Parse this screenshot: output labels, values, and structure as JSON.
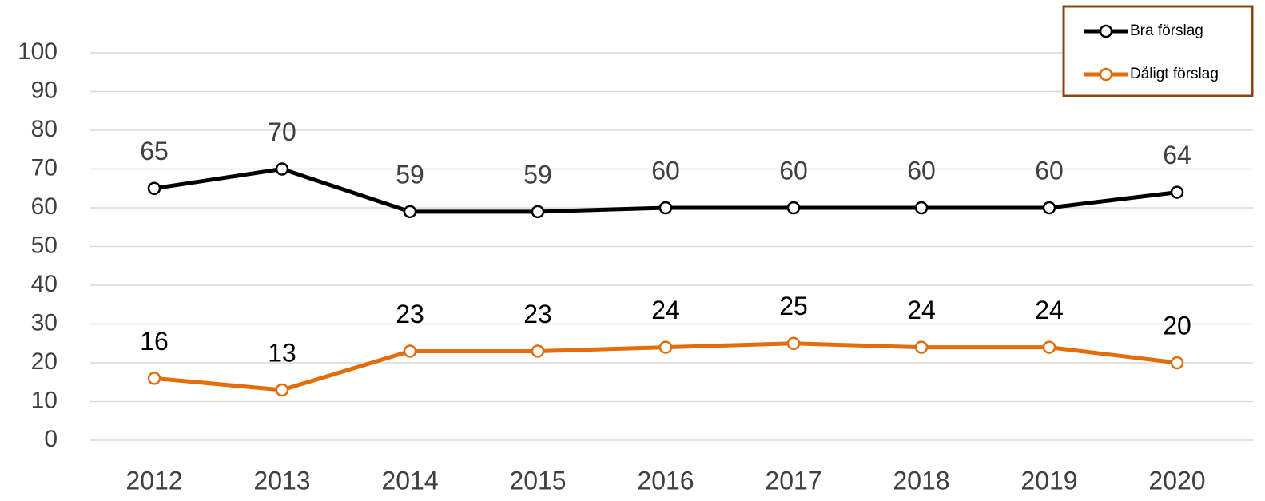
{
  "chart_data": {
    "type": "line",
    "categories": [
      "2012",
      "2013",
      "2014",
      "2015",
      "2016",
      "2017",
      "2018",
      "2019",
      "2020"
    ],
    "series": [
      {
        "name": "Bra förslag",
        "color": "#000000",
        "values": [
          65,
          70,
          59,
          59,
          60,
          60,
          60,
          60,
          64
        ]
      },
      {
        "name": "Dåligt förslag",
        "color": "#e46c0a",
        "values": [
          16,
          13,
          23,
          23,
          24,
          25,
          24,
          24,
          20
        ]
      }
    ],
    "ylim": [
      0,
      100
    ],
    "yticks": [
      0,
      10,
      20,
      30,
      40,
      50,
      60,
      70,
      80,
      90,
      100
    ],
    "grid": true,
    "legend": "top-right"
  }
}
